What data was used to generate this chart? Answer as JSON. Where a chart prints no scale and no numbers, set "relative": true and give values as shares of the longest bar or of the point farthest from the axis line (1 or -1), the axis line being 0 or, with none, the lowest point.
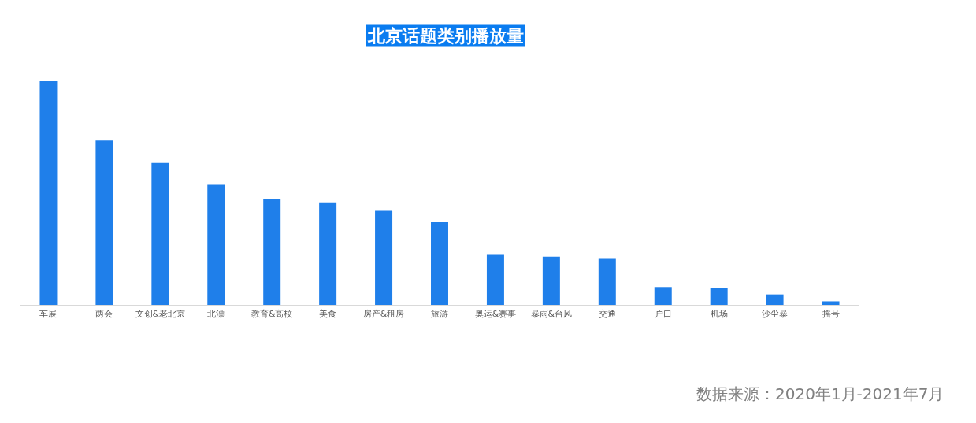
{
  "chart_data": {
    "type": "bar",
    "title": "北京话题类别播放量",
    "categories": [
      "车展",
      "两会",
      "文创&老北京",
      "北漂",
      "教育&高校",
      "美食",
      "房产&租房",
      "旅游",
      "奥运&赛事",
      "暴雨&台风",
      "交通",
      "户口",
      "机场",
      "沙尘暴",
      "摇号"
    ],
    "values": [
      1,
      0.735,
      0.635,
      0.537,
      0.475,
      0.455,
      0.421,
      0.37,
      0.224,
      0.216,
      0.206,
      0.08,
      0.077,
      0.047,
      0.016
    ],
    "color": "#1f7fea",
    "relative": true,
    "annotations": [
      "数据来源：2020年1月-2021年7月"
    ]
  }
}
